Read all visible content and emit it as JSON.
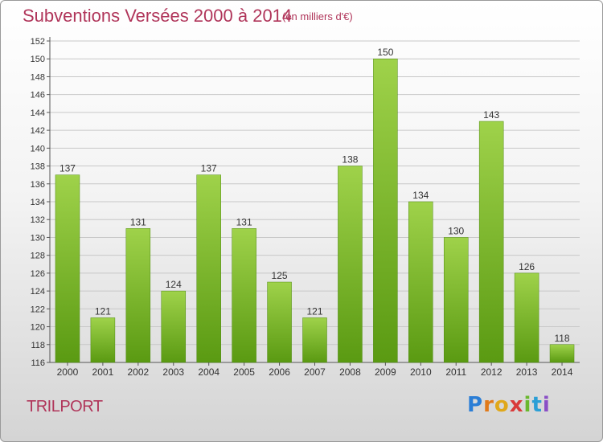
{
  "header": {
    "title": "Subventions Versées 2000 à 2014",
    "subtitle": "(en milliers d'€)"
  },
  "footer": {
    "commune": "TRILPORT",
    "logo_text": "Proxiti"
  },
  "colors": {
    "accent": "#b0355a",
    "bar_top": "#9fd24a",
    "bar_bottom": "#5a9a12",
    "grid": "#c8c8c8"
  },
  "chart_data": {
    "type": "bar",
    "categories": [
      "2000",
      "2001",
      "2002",
      "2003",
      "2004",
      "2005",
      "2006",
      "2007",
      "2008",
      "2009",
      "2010",
      "2011",
      "2012",
      "2013",
      "2014"
    ],
    "values": [
      137,
      121,
      131,
      124,
      137,
      131,
      125,
      121,
      138,
      150,
      134,
      130,
      143,
      126,
      118
    ],
    "title": "Subventions Versées 2000 à 2014",
    "ylim": [
      116,
      152
    ],
    "yticks": [
      116,
      118,
      120,
      122,
      124,
      126,
      128,
      130,
      132,
      134,
      136,
      138,
      140,
      142,
      144,
      146,
      148,
      150,
      152
    ],
    "grid": true
  }
}
